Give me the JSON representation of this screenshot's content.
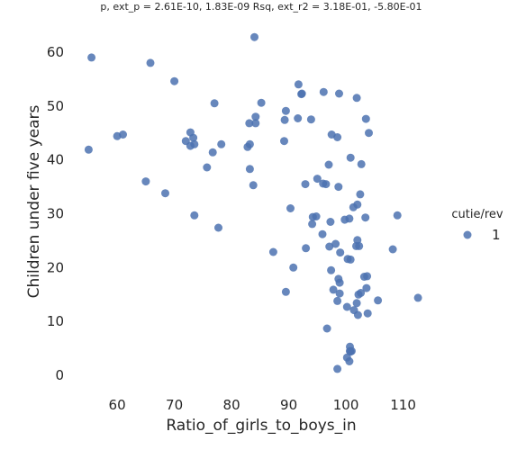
{
  "chart_data": {
    "type": "scatter",
    "title": "p, ext_p = 2.61E-10, 1.83E-09 Rsq, ext_r2 = 3.18E-01, -5.80E-01",
    "xlabel": "Ratio_of_girls_to_boys_in",
    "ylabel": "Children under five years",
    "xlim": [
      51,
      117
    ],
    "ylim": [
      -2.5,
      65
    ],
    "xticks": [
      "60",
      "70",
      "80",
      "90",
      "100",
      "110"
    ],
    "yticks": [
      "0",
      "10",
      "20",
      "30",
      "40",
      "50",
      "60"
    ],
    "grid": false,
    "legend": {
      "title": "cutie/rev",
      "position": "right",
      "entries": [
        "1"
      ],
      "color": "#4c72b0"
    },
    "series": [
      {
        "x": [
          55.5,
          65.8,
          70,
          77,
          55,
          60,
          61,
          65,
          68.4,
          72,
          72.8,
          73.3,
          73.5,
          72.8,
          73.5,
          75.7,
          76.7,
          78.2,
          77.7,
          84,
          85.2,
          84.2,
          84.2,
          83.1,
          82.8,
          83.2,
          83.2,
          83.8,
          89.5,
          89.3,
          89.2,
          91.7,
          92.2,
          92.3,
          91.6,
          93.9,
          96.1,
          98.8,
          101.9,
          97.5,
          98.5,
          103.5,
          104,
          95,
          92.9,
          96,
          96.5,
          97,
          100.8,
          102.7,
          94.8,
          98.7,
          102.5,
          90.3,
          102,
          101.3,
          94.1,
          103.4,
          94.2,
          99.8,
          97.3,
          95.9,
          100.6,
          98.2,
          97.1,
          102,
          102.3,
          101.8,
          87.3,
          109,
          108.2,
          93,
          99,
          100.3,
          100.8,
          90.8,
          97.4,
          98.7,
          98.9,
          103.2,
          103.7,
          102.6,
          98.9,
          103.6,
          97.8,
          102.2,
          105.6,
          101.9,
          89.5,
          98.5,
          100.2,
          101.4,
          102.1,
          103.8,
          96.7,
          100.7,
          101,
          100.7,
          100.2,
          100.8,
          100.6,
          98.5,
          112.6
        ],
        "y": [
          59,
          58,
          54.6,
          50.5,
          41.9,
          44.4,
          44.7,
          36,
          33.8,
          43.5,
          45.1,
          44.1,
          42.9,
          42.6,
          29.7,
          38.6,
          41.4,
          42.9,
          27.4,
          62.8,
          50.6,
          48,
          46.8,
          46.8,
          42.4,
          42.9,
          38.3,
          35.3,
          49.1,
          47.4,
          43.5,
          54,
          52.2,
          52.3,
          47.7,
          47.5,
          52.6,
          52.3,
          51.5,
          44.7,
          44.2,
          47.6,
          45,
          36.5,
          35.5,
          35.6,
          35.5,
          39.1,
          40.4,
          39.2,
          29.5,
          35,
          33.6,
          31,
          31.7,
          31.2,
          28.1,
          29.3,
          29.4,
          28.9,
          28.5,
          26.2,
          29.1,
          24.4,
          23.9,
          25.1,
          24,
          24,
          22.9,
          29.7,
          23.4,
          23.6,
          22.8,
          21.6,
          21.5,
          20,
          19.5,
          17.9,
          17.2,
          18.3,
          18.4,
          15.3,
          15.2,
          16.2,
          15.9,
          15,
          13.9,
          13.4,
          15.5,
          13.8,
          12.7,
          12.1,
          11.2,
          11.5,
          8.7,
          5.3,
          4.5,
          4.5,
          3.3,
          4.4,
          2.6,
          1.2,
          14.4
        ]
      }
    ]
  }
}
